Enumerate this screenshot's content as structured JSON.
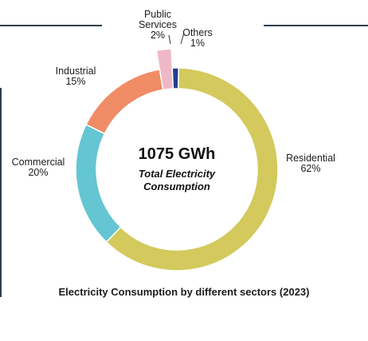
{
  "chart_data": {
    "type": "pie",
    "title": "Electricity Consumption by different sectors (2023)",
    "center_value": "1075 GWh",
    "center_label": [
      "Total Electricity",
      "Consumption"
    ],
    "series": [
      {
        "label": "Residential",
        "value": 62,
        "value_label": "62%",
        "color": "#d3c95c"
      },
      {
        "label": "Commercial",
        "value": 20,
        "value_label": "20%",
        "color": "#63c6d2"
      },
      {
        "label": "Industrial",
        "value": 15,
        "value_label": "15%",
        "color": "#f08c66"
      },
      {
        "label": "Public Services",
        "label_lines": [
          "Public",
          "Services"
        ],
        "value": 2,
        "value_label": "2%",
        "color": "#efb8c6"
      },
      {
        "label": "Others",
        "value": 1,
        "value_label": "1%",
        "color": "#233e8b"
      }
    ]
  }
}
